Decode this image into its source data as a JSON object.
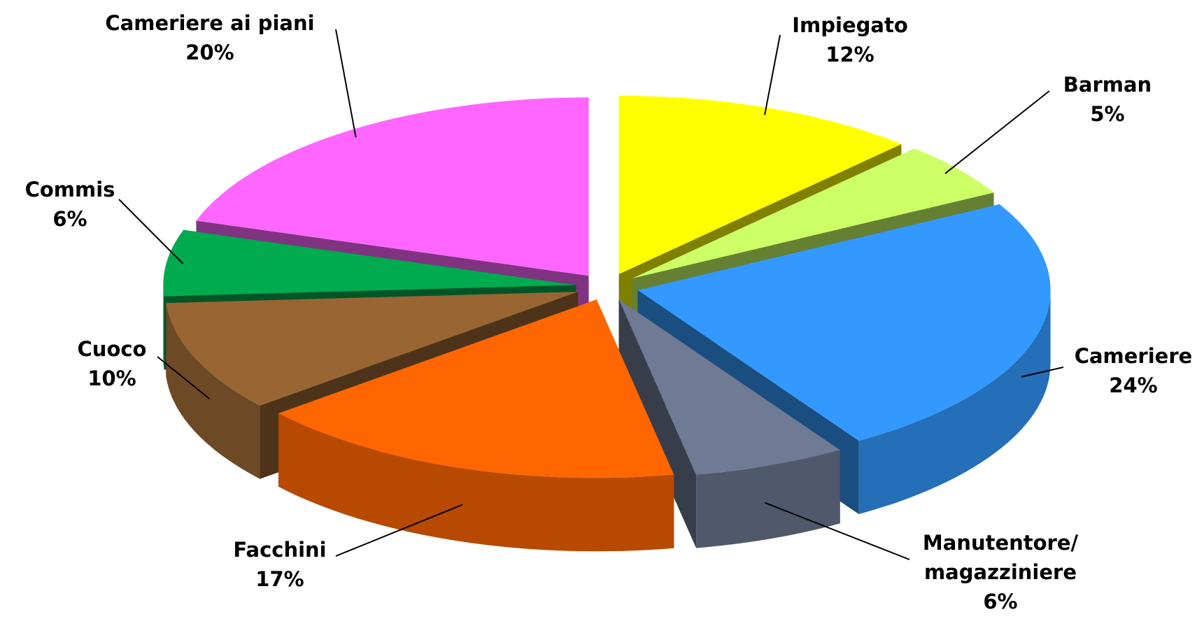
{
  "chart_data": {
    "type": "pie",
    "categories": [
      "Impiegato",
      "Barman",
      "Cameriere",
      "Manutentore/\nmagazziniere",
      "Facchini",
      "Cuoco",
      "Commis",
      "Cameriere ai piani"
    ],
    "values": [
      12,
      5,
      24,
      6,
      17,
      10,
      6,
      20
    ],
    "value_labels": [
      "12%",
      "5%",
      "24%",
      "6%",
      "17%",
      "10%",
      "6%",
      "20%"
    ],
    "colors": [
      "#ffff00",
      "#ccff66",
      "#3399ff",
      "#6f7a94",
      "#ff6600",
      "#996633",
      "#00aa4f",
      "#ff66ff"
    ]
  }
}
